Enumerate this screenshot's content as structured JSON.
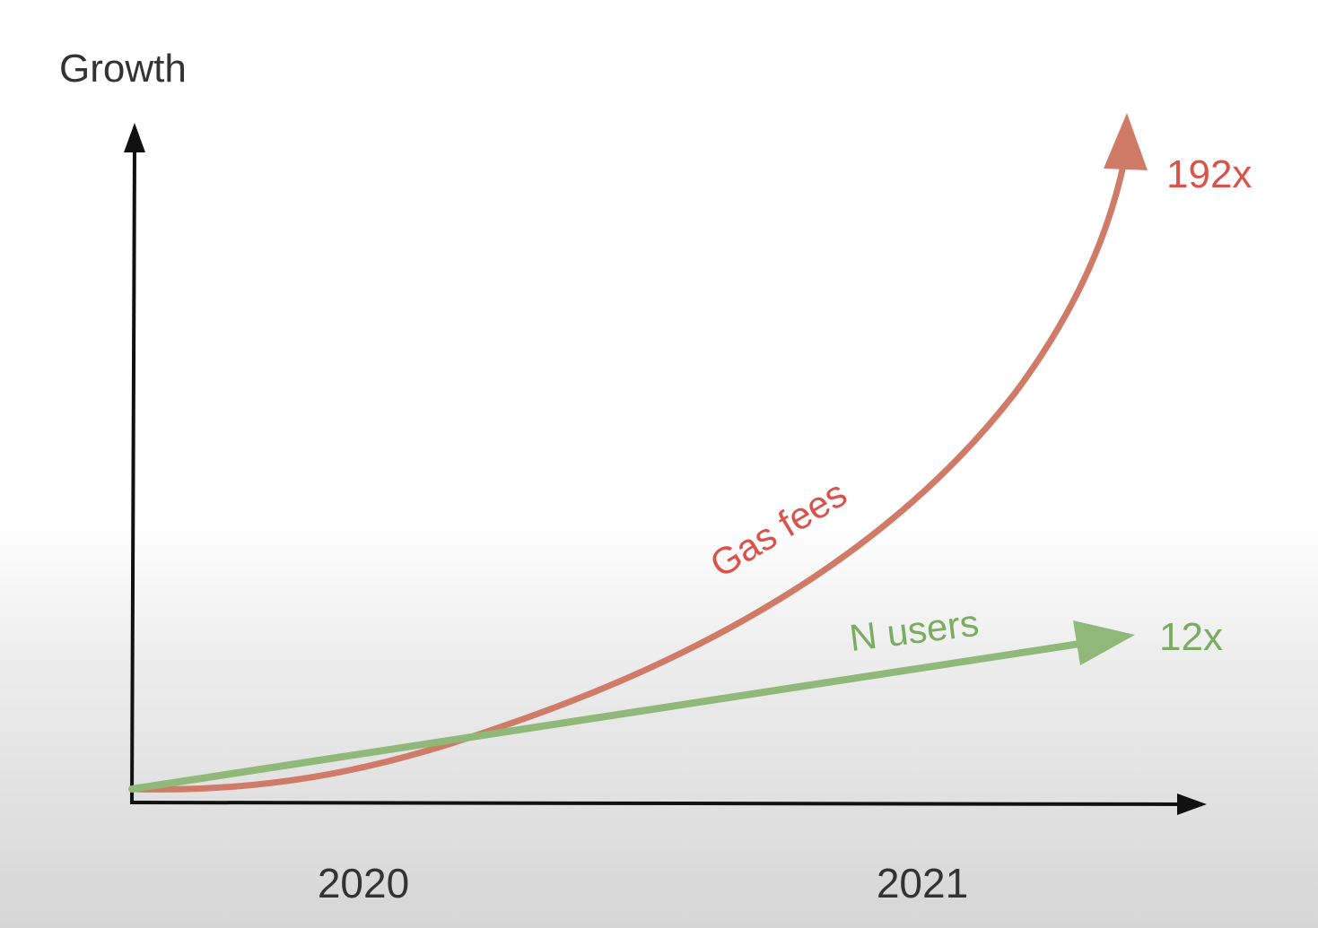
{
  "chart_data": {
    "type": "line",
    "ylabel": "Growth",
    "xlabel": "",
    "x_ticks": [
      "2020",
      "2021"
    ],
    "grid": false,
    "series": [
      {
        "name": "Gas fees",
        "end_label": "192x",
        "end_value": 192,
        "color": "#d07a68",
        "label_color": "#d9534a",
        "shape": "exponential"
      },
      {
        "name": "N users",
        "end_label": "12x",
        "end_value": 12,
        "color": "#8fb879",
        "label_color": "#7aad62",
        "shape": "linear"
      }
    ]
  }
}
